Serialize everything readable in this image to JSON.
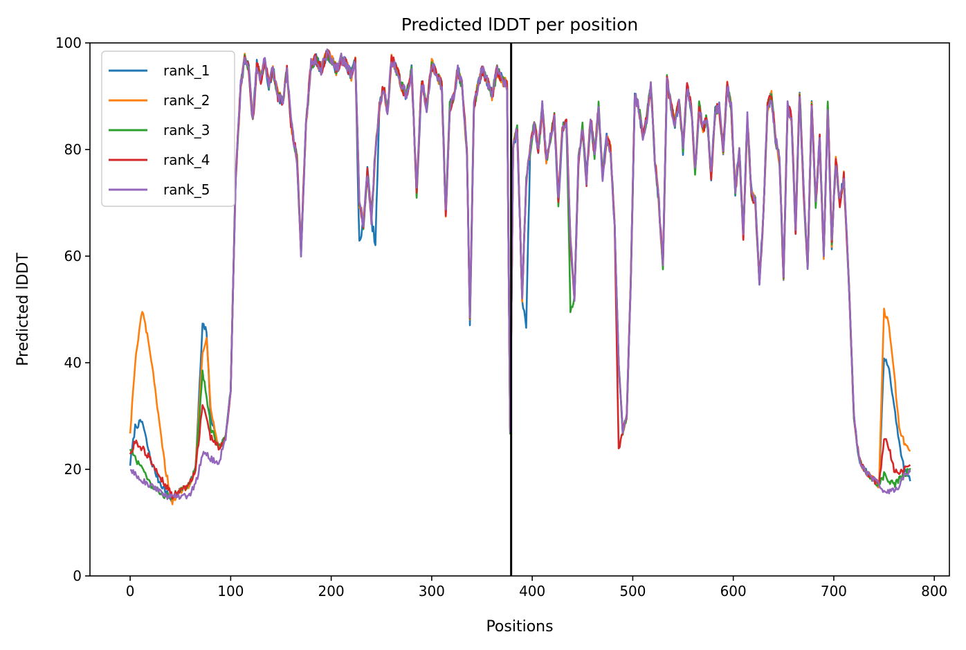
{
  "chart_data": {
    "type": "line",
    "title": "Predicted lDDT per position",
    "xlabel": "Positions",
    "ylabel": "Predicted lDDT",
    "xlim": [
      -40,
      815
    ],
    "ylim": [
      0,
      100
    ],
    "xticks": [
      0,
      100,
      200,
      300,
      400,
      500,
      600,
      700,
      800
    ],
    "yticks": [
      0,
      20,
      40,
      60,
      80,
      100
    ],
    "grid": false,
    "legend_position": "top-left",
    "vertical_line_x": 379,
    "x_max": 776,
    "keypoints": [
      0,
      5,
      12,
      20,
      28,
      35,
      42,
      50,
      58,
      65,
      72,
      76,
      80,
      88,
      95,
      100,
      105,
      110,
      114,
      118,
      122,
      126,
      130,
      134,
      138,
      142,
      147,
      152,
      156,
      160,
      166,
      170,
      175,
      180,
      185,
      190,
      196,
      200,
      205,
      210,
      215,
      220,
      224,
      228,
      232,
      236,
      240,
      244,
      248,
      252,
      256,
      260,
      265,
      270,
      275,
      280,
      285,
      290,
      295,
      300,
      305,
      310,
      314,
      318,
      322,
      326,
      330,
      335,
      338,
      342,
      346,
      350,
      355,
      360,
      365,
      370,
      375,
      378,
      381,
      385,
      390,
      394,
      398,
      402,
      406,
      410,
      414,
      418,
      422,
      426,
      430,
      434,
      438,
      442,
      446,
      450,
      454,
      458,
      462,
      466,
      470,
      474,
      478,
      482,
      486,
      490,
      494,
      498,
      502,
      506,
      510,
      514,
      518,
      522,
      526,
      530,
      534,
      538,
      542,
      546,
      550,
      554,
      558,
      562,
      566,
      570,
      574,
      578,
      582,
      586,
      590,
      594,
      598,
      602,
      606,
      610,
      614,
      618,
      622,
      626,
      630,
      634,
      638,
      642,
      646,
      650,
      654,
      658,
      662,
      666,
      670,
      674,
      678,
      682,
      686,
      690,
      694,
      698,
      702,
      706,
      710,
      715,
      720,
      725,
      730,
      735,
      740,
      745,
      750,
      755,
      760,
      765,
      770,
      776
    ],
    "base_values": [
      22,
      20,
      19,
      18,
      17,
      16,
      15,
      16,
      17,
      20,
      36,
      32,
      28,
      24,
      26,
      35,
      75,
      92,
      97,
      95,
      85,
      96,
      93,
      97,
      92,
      95,
      90,
      89,
      95,
      85,
      78,
      61,
      85,
      96,
      97,
      95,
      98,
      97,
      95,
      97,
      96,
      94,
      97,
      70,
      66,
      76,
      67,
      80,
      88,
      92,
      87,
      97,
      95,
      92,
      90,
      95,
      72,
      93,
      88,
      96,
      94,
      92,
      68,
      88,
      90,
      95,
      92,
      80,
      48,
      88,
      92,
      95,
      93,
      90,
      95,
      93,
      92,
      27,
      80,
      84,
      52,
      74,
      80,
      85,
      80,
      88,
      78,
      82,
      86,
      70,
      84,
      85,
      63,
      52,
      78,
      84,
      74,
      86,
      79,
      88,
      75,
      82,
      80,
      65,
      40,
      27,
      30,
      55,
      90,
      88,
      82,
      86,
      92,
      78,
      70,
      58,
      93,
      88,
      85,
      89,
      80,
      92,
      88,
      76,
      88,
      84,
      86,
      75,
      87,
      88,
      80,
      92,
      88,
      72,
      80,
      64,
      86,
      72,
      70,
      55,
      68,
      88,
      90,
      82,
      78,
      56,
      88,
      86,
      65,
      91,
      72,
      58,
      88,
      70,
      82,
      60,
      88,
      62,
      78,
      70,
      75,
      55,
      30,
      22,
      20,
      19,
      18,
      17,
      18,
      17,
      16,
      17,
      18,
      19
    ],
    "series": [
      {
        "name": "rank_1",
        "color": "#1f77b4",
        "overrides": [
          [
            0,
            21
          ],
          [
            5,
            28
          ],
          [
            12,
            29
          ],
          [
            20,
            22
          ],
          [
            28,
            18
          ],
          [
            35,
            16
          ],
          [
            42,
            14
          ],
          [
            72,
            47
          ],
          [
            76,
            46
          ],
          [
            80,
            30
          ],
          [
            228,
            62
          ],
          [
            244,
            62
          ],
          [
            338,
            47
          ],
          [
            394,
            47
          ],
          [
            742,
            37
          ],
          [
            750,
            41
          ],
          [
            755,
            39
          ],
          [
            760,
            32
          ],
          [
            765,
            25
          ],
          [
            770,
            20
          ],
          [
            776,
            18
          ]
        ]
      },
      {
        "name": "rank_2",
        "color": "#ff7f0e",
        "overrides": [
          [
            0,
            27
          ],
          [
            5,
            40
          ],
          [
            12,
            50
          ],
          [
            20,
            42
          ],
          [
            28,
            30
          ],
          [
            35,
            20
          ],
          [
            42,
            14
          ],
          [
            72,
            42
          ],
          [
            76,
            45
          ],
          [
            80,
            32
          ],
          [
            742,
            40
          ],
          [
            750,
            50
          ],
          [
            755,
            47
          ],
          [
            760,
            38
          ],
          [
            765,
            28
          ],
          [
            770,
            25
          ],
          [
            776,
            24
          ]
        ]
      },
      {
        "name": "rank_3",
        "color": "#2ca02c",
        "overrides": [
          [
            0,
            24
          ],
          [
            5,
            22
          ],
          [
            12,
            20
          ],
          [
            20,
            17
          ],
          [
            28,
            16
          ],
          [
            35,
            15
          ],
          [
            72,
            38
          ],
          [
            76,
            34
          ],
          [
            80,
            28
          ],
          [
            438,
            50
          ],
          [
            742,
            18
          ],
          [
            750,
            19
          ],
          [
            755,
            18
          ],
          [
            760,
            17
          ],
          [
            765,
            18
          ],
          [
            770,
            19
          ],
          [
            776,
            20
          ]
        ]
      },
      {
        "name": "rank_4",
        "color": "#d62728",
        "overrides": [
          [
            0,
            23
          ],
          [
            5,
            25
          ],
          [
            12,
            24
          ],
          [
            20,
            22
          ],
          [
            28,
            19
          ],
          [
            35,
            17
          ],
          [
            72,
            32
          ],
          [
            76,
            30
          ],
          [
            80,
            26
          ],
          [
            486,
            24
          ],
          [
            742,
            22
          ],
          [
            750,
            26
          ],
          [
            755,
            24
          ],
          [
            760,
            20
          ],
          [
            765,
            19
          ],
          [
            770,
            20
          ],
          [
            776,
            21
          ]
        ]
      },
      {
        "name": "rank_5",
        "color": "#9467bd",
        "overrides": [
          [
            0,
            20
          ],
          [
            5,
            19
          ],
          [
            12,
            18
          ],
          [
            20,
            17
          ],
          [
            28,
            16
          ],
          [
            35,
            15
          ],
          [
            50,
            15
          ],
          [
            58,
            15
          ],
          [
            65,
            17
          ],
          [
            72,
            23
          ],
          [
            76,
            23
          ],
          [
            80,
            22
          ],
          [
            88,
            21
          ],
          [
            742,
            16
          ],
          [
            750,
            16
          ],
          [
            755,
            16
          ],
          [
            760,
            16
          ],
          [
            765,
            17
          ],
          [
            770,
            19
          ],
          [
            776,
            20
          ]
        ]
      }
    ]
  }
}
